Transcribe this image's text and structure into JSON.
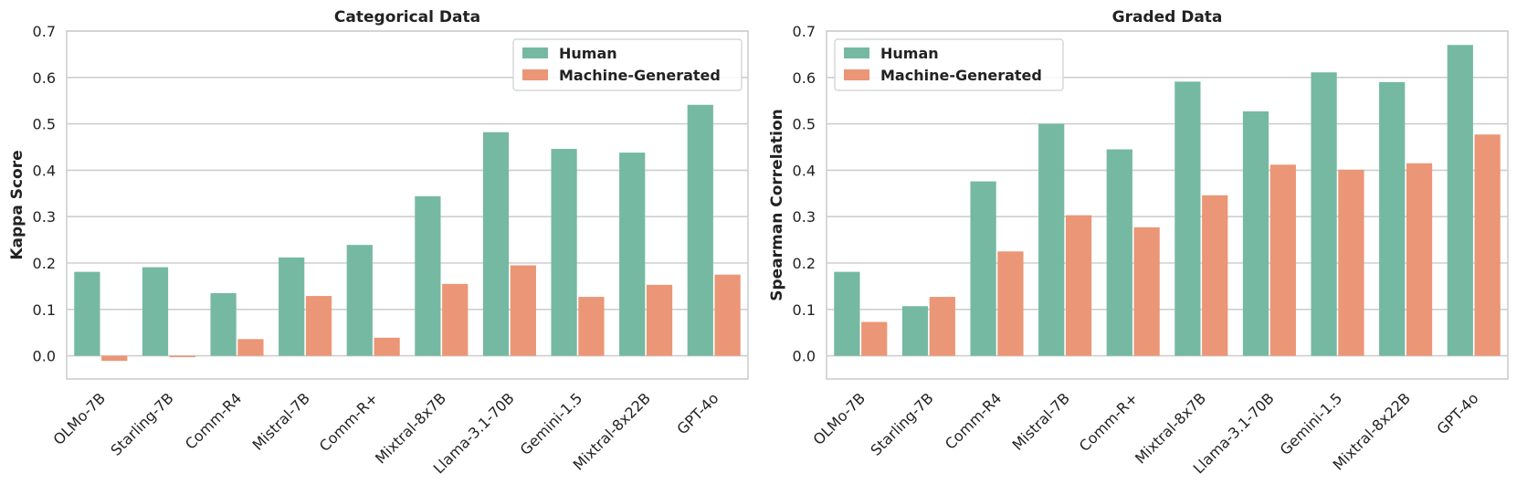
{
  "colors": {
    "human": "#75b9a2",
    "machine": "#eb9676",
    "grid": "#cfcfcf",
    "frame": "#cfcfcf"
  },
  "chart_data": [
    {
      "type": "bar",
      "title": "Categorical Data",
      "xlabel": "",
      "ylabel": "Kappa Score",
      "ylim": [
        -0.05,
        0.7
      ],
      "yticks": [
        "0.0",
        "0.1",
        "0.2",
        "0.3",
        "0.4",
        "0.5",
        "0.6",
        "0.7"
      ],
      "grid": true,
      "legend": "top-right",
      "categories": [
        "OLMo-7B",
        "Starling-7B",
        "Comm-R4",
        "Mistral-7B",
        "Comm-R+",
        "Mixtral-8x7B",
        "Llama-3.1-70B",
        "Gemini-1.5",
        "Mixtral-8x22B",
        "GPT-4o"
      ],
      "series": [
        {
          "name": "Human",
          "values": [
            0.181,
            0.191,
            0.135,
            0.212,
            0.239,
            0.344,
            0.482,
            0.446,
            0.438,
            0.541
          ]
        },
        {
          "name": "Machine-Generated",
          "values": [
            -0.011,
            -0.003,
            0.036,
            0.129,
            0.039,
            0.155,
            0.195,
            0.127,
            0.153,
            0.175
          ]
        }
      ]
    },
    {
      "type": "bar",
      "title": "Graded Data",
      "xlabel": "",
      "ylabel": "Spearman Correlation",
      "ylim": [
        -0.05,
        0.7
      ],
      "yticks": [
        "0.0",
        "0.1",
        "0.2",
        "0.3",
        "0.4",
        "0.5",
        "0.6",
        "0.7"
      ],
      "grid": true,
      "legend": "top-left",
      "categories": [
        "OLMo-7B",
        "Starling-7B",
        "Comm-R4",
        "Mistral-7B",
        "Comm-R+",
        "Mixtral-8x7B",
        "Llama-3.1-70B",
        "Gemini-1.5",
        "Mixtral-8x22B",
        "GPT-4o"
      ],
      "series": [
        {
          "name": "Human",
          "values": [
            0.181,
            0.107,
            0.376,
            0.5,
            0.445,
            0.591,
            0.527,
            0.611,
            0.59,
            0.67
          ]
        },
        {
          "name": "Machine-Generated",
          "values": [
            0.073,
            0.127,
            0.225,
            0.303,
            0.277,
            0.346,
            0.412,
            0.401,
            0.415,
            0.477
          ]
        }
      ]
    }
  ]
}
